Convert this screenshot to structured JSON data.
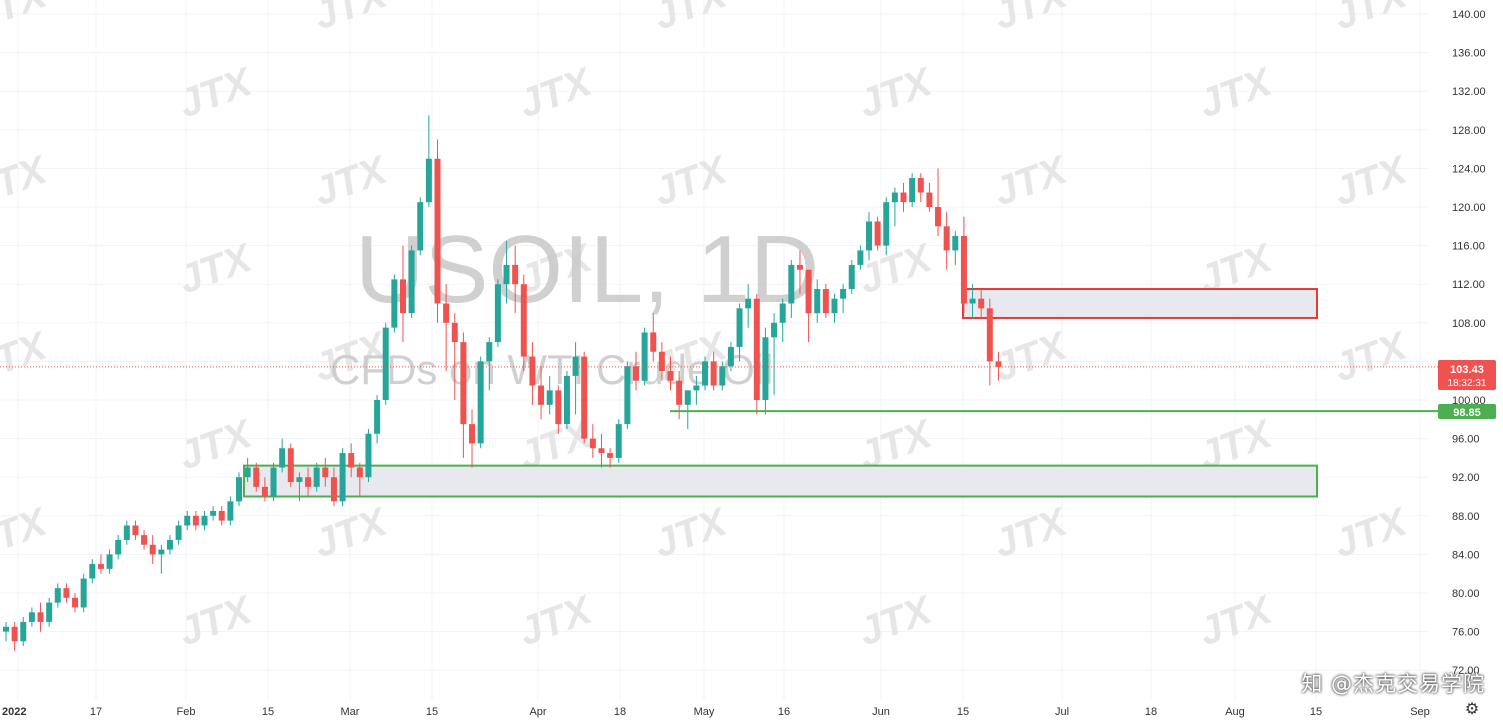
{
  "watermark": {
    "symbol": "USOIL, 1D",
    "description": "CFDs on WTI Crude Oil",
    "brand": "JTX"
  },
  "credit": "知 @杰克交易学院",
  "price_tag": {
    "price": "103.43",
    "countdown": "18:32:31",
    "color": "#ef5350"
  },
  "support_tag": {
    "price": "98.85",
    "color": "#4caf50"
  },
  "settings_icon": "gear-icon",
  "colors": {
    "up": "#26a69a",
    "down": "#ef5350",
    "zone_red": "#e53935",
    "zone_green": "#4caf50",
    "zone_fill": "#e8e9ee"
  },
  "chart_data": {
    "type": "candlestick",
    "title": "USOIL, 1D",
    "subtitle": "CFDs on WTI Crude Oil",
    "ylim": [
      72,
      140
    ],
    "yticks": [
      "140.00",
      "136.00",
      "132.00",
      "128.00",
      "124.00",
      "120.00",
      "116.00",
      "112.00",
      "108.00",
      "104.00",
      "100.00",
      "96.00",
      "92.00",
      "88.00",
      "84.00",
      "80.00",
      "76.00",
      "72.00"
    ],
    "xticks": [
      "2022",
      "17",
      "Feb",
      "15",
      "Mar",
      "15",
      "Apr",
      "18",
      "May",
      "16",
      "Jun",
      "15",
      "Jul",
      "18",
      "Aug",
      "15",
      "Sep"
    ],
    "current_price": 103.43,
    "support_line": 98.85,
    "zones": [
      {
        "type": "resistance",
        "low": 108.5,
        "high": 111.5
      },
      {
        "type": "support",
        "low": 90.0,
        "high": 93.2
      }
    ],
    "candles": [
      [
        76.0,
        77.0,
        75.0,
        76.5
      ],
      [
        76.5,
        77.0,
        74.0,
        75.0
      ],
      [
        75.0,
        77.5,
        74.5,
        77.0
      ],
      [
        77.0,
        78.5,
        76.5,
        78.0
      ],
      [
        78.0,
        79.0,
        76.0,
        77.0
      ],
      [
        77.0,
        79.5,
        76.5,
        79.0
      ],
      [
        79.0,
        81.0,
        78.5,
        80.5
      ],
      [
        80.5,
        81.0,
        79.0,
        79.5
      ],
      [
        79.5,
        80.0,
        78.0,
        78.5
      ],
      [
        78.5,
        82.0,
        78.0,
        81.5
      ],
      [
        81.5,
        83.5,
        81.0,
        83.0
      ],
      [
        83.0,
        84.0,
        82.0,
        82.5
      ],
      [
        82.5,
        84.5,
        82.0,
        84.0
      ],
      [
        84.0,
        86.0,
        83.5,
        85.5
      ],
      [
        85.5,
        87.5,
        85.0,
        87.0
      ],
      [
        87.0,
        87.5,
        85.5,
        86.0
      ],
      [
        86.0,
        86.5,
        84.5,
        85.0
      ],
      [
        85.0,
        86.0,
        83.0,
        84.0
      ],
      [
        84.0,
        85.0,
        82.0,
        84.5
      ],
      [
        84.5,
        86.0,
        84.0,
        85.5
      ],
      [
        85.5,
        87.5,
        85.0,
        87.0
      ],
      [
        87.0,
        88.5,
        86.5,
        88.0
      ],
      [
        88.0,
        88.5,
        86.5,
        87.0
      ],
      [
        87.0,
        88.5,
        86.5,
        88.0
      ],
      [
        88.0,
        89.0,
        87.5,
        88.5
      ],
      [
        88.5,
        89.0,
        87.0,
        87.5
      ],
      [
        87.5,
        90.0,
        87.0,
        89.5
      ],
      [
        89.5,
        92.5,
        89.0,
        92.0
      ],
      [
        92.0,
        94.0,
        91.5,
        93.0
      ],
      [
        93.0,
        93.5,
        90.5,
        91.0
      ],
      [
        91.0,
        92.0,
        89.5,
        90.0
      ],
      [
        90.0,
        93.5,
        89.5,
        93.0
      ],
      [
        93.0,
        96.0,
        92.5,
        95.0
      ],
      [
        95.0,
        95.5,
        91.0,
        91.5
      ],
      [
        91.5,
        92.5,
        89.5,
        92.0
      ],
      [
        92.0,
        93.0,
        90.0,
        91.0
      ],
      [
        91.0,
        93.5,
        90.5,
        93.0
      ],
      [
        93.0,
        94.0,
        91.0,
        92.0
      ],
      [
        92.0,
        93.0,
        89.0,
        89.5
      ],
      [
        89.5,
        95.0,
        89.0,
        94.5
      ],
      [
        94.5,
        95.5,
        92.0,
        93.0
      ],
      [
        93.0,
        93.5,
        90.0,
        92.0
      ],
      [
        92.0,
        97.0,
        91.5,
        96.5
      ],
      [
        96.5,
        100.5,
        95.5,
        100.0
      ],
      [
        100.0,
        108.0,
        99.5,
        107.5
      ],
      [
        107.5,
        113.0,
        107.0,
        112.5
      ],
      [
        112.5,
        116.0,
        106.0,
        109.0
      ],
      [
        109.0,
        116.0,
        108.5,
        115.5
      ],
      [
        115.5,
        121.0,
        115.0,
        120.5
      ],
      [
        120.5,
        129.5,
        120.0,
        125.0
      ],
      [
        125.0,
        127.0,
        108.0,
        110.0
      ],
      [
        110.0,
        112.0,
        103.0,
        108.0
      ],
      [
        108.0,
        109.0,
        100.0,
        106.0
      ],
      [
        106.0,
        107.0,
        94.0,
        97.5
      ],
      [
        97.5,
        99.0,
        93.0,
        95.5
      ],
      [
        95.5,
        104.5,
        95.0,
        104.0
      ],
      [
        104.0,
        106.5,
        101.0,
        106.0
      ],
      [
        106.0,
        112.5,
        105.5,
        112.0
      ],
      [
        112.0,
        116.5,
        110.0,
        114.0
      ],
      [
        114.0,
        116.0,
        109.0,
        112.0
      ],
      [
        112.0,
        113.0,
        103.0,
        104.5
      ],
      [
        104.5,
        106.0,
        99.5,
        101.5
      ],
      [
        101.5,
        103.5,
        98.0,
        99.5
      ],
      [
        99.5,
        102.5,
        98.5,
        101.0
      ],
      [
        101.0,
        101.5,
        96.5,
        97.5
      ],
      [
        97.5,
        103.0,
        97.0,
        102.5
      ],
      [
        102.5,
        106.0,
        98.5,
        104.5
      ],
      [
        104.5,
        105.0,
        95.5,
        96.0
      ],
      [
        96.0,
        97.5,
        94.0,
        95.0
      ],
      [
        95.0,
        96.5,
        93.0,
        94.5
      ],
      [
        94.5,
        95.0,
        93.0,
        94.0
      ],
      [
        94.0,
        98.0,
        93.5,
        97.5
      ],
      [
        97.5,
        104.0,
        97.0,
        103.5
      ],
      [
        103.5,
        105.0,
        101.0,
        102.0
      ],
      [
        102.0,
        107.5,
        101.5,
        107.0
      ],
      [
        107.0,
        109.0,
        104.0,
        105.0
      ],
      [
        105.0,
        106.0,
        102.0,
        103.0
      ],
      [
        103.0,
        104.5,
        101.0,
        102.0
      ],
      [
        102.0,
        103.0,
        98.0,
        99.5
      ],
      [
        99.5,
        101.0,
        97.0,
        101.0
      ],
      [
        101.0,
        102.5,
        99.5,
        101.5
      ],
      [
        101.5,
        104.5,
        101.0,
        104.0
      ],
      [
        104.0,
        105.0,
        101.0,
        101.5
      ],
      [
        101.5,
        104.0,
        101.0,
        103.5
      ],
      [
        103.5,
        106.0,
        103.0,
        105.5
      ],
      [
        105.5,
        110.0,
        104.0,
        109.5
      ],
      [
        109.5,
        112.0,
        107.5,
        110.5
      ],
      [
        110.5,
        111.0,
        98.5,
        100.0
      ],
      [
        100.0,
        107.5,
        98.5,
        106.5
      ],
      [
        106.5,
        109.0,
        100.5,
        108.0
      ],
      [
        108.0,
        110.5,
        106.0,
        110.0
      ],
      [
        110.0,
        114.5,
        108.5,
        114.0
      ],
      [
        114.0,
        115.5,
        111.0,
        113.5
      ],
      [
        113.5,
        113.5,
        106.0,
        109.0
      ],
      [
        109.0,
        112.5,
        108.0,
        111.5
      ],
      [
        111.5,
        112.0,
        108.5,
        109.0
      ],
      [
        109.0,
        111.0,
        108.0,
        110.5
      ],
      [
        110.5,
        112.0,
        109.0,
        111.5
      ],
      [
        111.5,
        114.5,
        111.0,
        114.0
      ],
      [
        114.0,
        116.0,
        113.5,
        115.5
      ],
      [
        115.5,
        119.5,
        114.5,
        118.5
      ],
      [
        118.5,
        119.0,
        115.5,
        116.0
      ],
      [
        116.0,
        121.0,
        115.0,
        120.5
      ],
      [
        120.5,
        122.0,
        118.0,
        121.5
      ],
      [
        121.5,
        122.5,
        119.5,
        120.5
      ],
      [
        120.5,
        123.5,
        120.0,
        123.0
      ],
      [
        123.0,
        123.5,
        120.5,
        121.5
      ],
      [
        121.5,
        122.5,
        119.5,
        120.0
      ],
      [
        120.0,
        124.0,
        117.0,
        118.0
      ],
      [
        118.0,
        119.5,
        113.5,
        115.5
      ],
      [
        115.5,
        117.5,
        114.0,
        117.0
      ],
      [
        117.0,
        119.0,
        109.0,
        110.0
      ],
      [
        110.0,
        112.0,
        108.5,
        110.5
      ],
      [
        110.5,
        111.5,
        108.5,
        109.5
      ],
      [
        109.5,
        110.5,
        101.5,
        104.0
      ],
      [
        104.0,
        105.0,
        102.0,
        103.43
      ]
    ]
  }
}
